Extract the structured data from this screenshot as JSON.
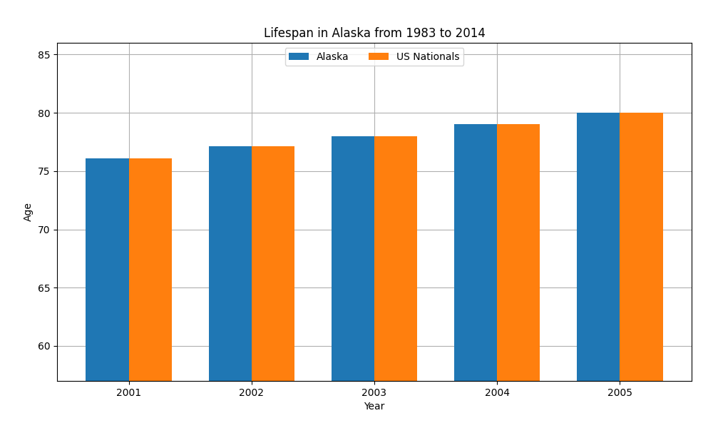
{
  "chart_data": {
    "type": "bar",
    "title": "Lifespan in Alaska from 1983 to 2014",
    "xlabel": "Year",
    "ylabel": "Age",
    "categories": [
      "2001",
      "2002",
      "2003",
      "2004",
      "2005"
    ],
    "series": [
      {
        "name": "Alaska",
        "values": [
          76.1,
          77.1,
          78.0,
          79.0,
          80.0
        ]
      },
      {
        "name": "US Nationals",
        "values": [
          76.1,
          77.1,
          78.0,
          79.0,
          80.0
        ]
      }
    ],
    "ylim": [
      57,
      86
    ],
    "yticks": [
      60,
      65,
      70,
      75,
      80,
      85
    ],
    "grid": true,
    "legend": "upper center"
  }
}
